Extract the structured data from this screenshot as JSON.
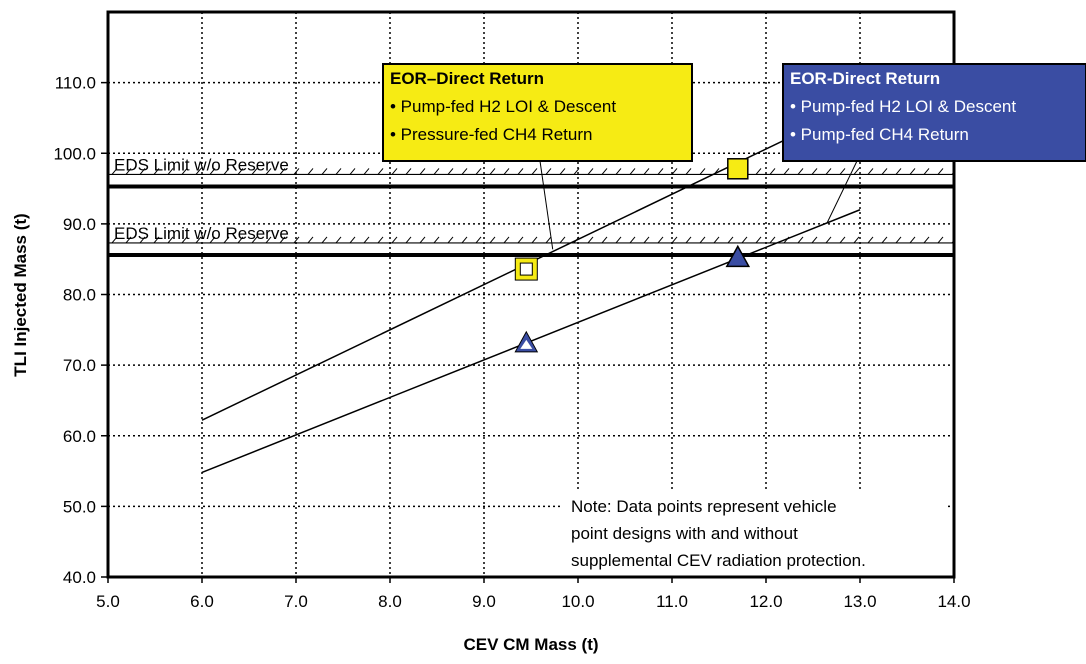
{
  "chart_data": {
    "type": "scatter",
    "xlabel": "CEV CM Mass (t)",
    "ylabel": "TLI Injected Mass (t)",
    "xlim": [
      5.0,
      14.0
    ],
    "ylim": [
      40.0,
      120.0
    ],
    "x_ticks": [
      "5.0",
      "6.0",
      "7.0",
      "8.0",
      "9.0",
      "10.0",
      "11.0",
      "12.0",
      "13.0",
      "14.0"
    ],
    "y_ticks": [
      "40.0",
      "50.0",
      "60.0",
      "70.0",
      "80.0",
      "90.0",
      "100.0",
      "110.0"
    ],
    "grid": true,
    "series": [
      {
        "name": "EOR–Direct Return",
        "bullets": [
          "• Pump-fed H2 LOI & Descent",
          "• Pressure-fed CH4 Return"
        ],
        "color": "#F6EB14",
        "marker": "square",
        "line": [
          [
            6.0,
            62.2
          ],
          [
            13.0,
            107.0
          ]
        ],
        "points": [
          {
            "x": 9.45,
            "y": 83.6,
            "filled": false
          },
          {
            "x": 11.7,
            "y": 97.8,
            "filled": true
          }
        ]
      },
      {
        "name": "EOR-Direct Return",
        "bullets": [
          "• Pump-fed H2 LOI & Descent",
          "• Pump-fed CH4 Return"
        ],
        "color": "#3A4DA3",
        "marker": "triangle",
        "line": [
          [
            6.0,
            54.8
          ],
          [
            13.0,
            92.0
          ]
        ],
        "points": [
          {
            "x": 9.45,
            "y": 73.3,
            "filled": false
          },
          {
            "x": 11.7,
            "y": 85.4,
            "filled": true
          }
        ]
      }
    ],
    "limits": [
      {
        "label": "EDS Limit w/o Reserve",
        "y": 95.3
      },
      {
        "label": "EDS Limit w/o Reserve",
        "y": 85.6
      }
    ],
    "note": [
      "Note:  Data points represent vehicle",
      "point designs with and without",
      "supplemental CEV radiation protection."
    ]
  }
}
